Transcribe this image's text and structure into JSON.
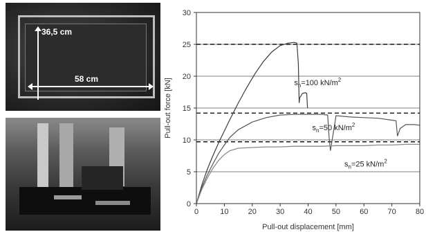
{
  "photos": {
    "top": {
      "height_label": "36,5 cm",
      "width_label": "58 cm"
    }
  },
  "chart_data": {
    "type": "line",
    "xlabel": "Pull-out displacement [mm]",
    "ylabel": "Pull-out force [kN]",
    "xlim": [
      0,
      80
    ],
    "ylim": [
      0,
      30
    ],
    "xticks": [
      0,
      10,
      20,
      30,
      40,
      50,
      60,
      70,
      80
    ],
    "yticks": [
      0,
      5,
      10,
      15,
      20,
      25,
      30
    ],
    "grid": "horizontal",
    "series": [
      {
        "label_main": "s",
        "label_sub": "n",
        "label_rest": "=100 kN/m",
        "label_sup": "2",
        "label_at": [
          35,
          18.6
        ],
        "color": "#3a3a3a",
        "x": [
          0,
          2,
          4,
          6,
          8,
          10,
          12,
          15,
          18,
          21,
          24,
          27,
          30,
          33,
          35,
          36,
          36.5,
          36.8,
          37,
          38,
          39,
          39.5,
          39.8
        ],
        "y": [
          0,
          3.0,
          5.5,
          7.6,
          9.6,
          11.4,
          13.2,
          15.8,
          18.2,
          20.4,
          22.3,
          23.8,
          24.8,
          25.2,
          25.3,
          25.2,
          22.0,
          15.8,
          16.6,
          17.3,
          17.4,
          17.3,
          15.0
        ]
      },
      {
        "label_main": "s",
        "label_sub": "n",
        "label_rest": "=50 kN/m",
        "label_sup": "2",
        "label_at": [
          41.5,
          11.5
        ],
        "color": "#555555",
        "x": [
          0,
          2,
          4,
          6,
          8,
          10,
          12,
          15,
          20,
          25,
          30,
          35,
          40,
          43,
          45,
          47,
          47.5,
          48,
          50,
          55,
          60,
          65,
          70,
          71.5,
          72,
          73,
          75,
          78,
          80
        ],
        "y": [
          0,
          2.6,
          4.6,
          6.3,
          7.9,
          9.2,
          10.4,
          11.6,
          12.8,
          13.5,
          13.9,
          14.0,
          14.0,
          14.0,
          14.0,
          13.9,
          10.5,
          8.3,
          13.8,
          13.6,
          13.5,
          13.4,
          13.1,
          13.0,
          10.6,
          11.8,
          12.4,
          12.4,
          12.3
        ]
      },
      {
        "label_main": "s",
        "label_sub": "n",
        "label_rest": "=25 kN/m",
        "label_sup": "2",
        "label_at": [
          53,
          5.8
        ],
        "color": "#8a8a8a",
        "x": [
          0,
          2,
          4,
          6,
          8,
          10,
          12,
          15,
          20,
          25,
          30,
          35,
          40,
          45,
          50,
          55,
          60,
          65,
          70,
          75,
          80
        ],
        "y": [
          0,
          2.3,
          4.1,
          5.6,
          6.8,
          7.7,
          8.3,
          8.7,
          8.8,
          8.9,
          8.9,
          9.0,
          9.0,
          9.0,
          9.1,
          9.1,
          9.1,
          9.2,
          9.2,
          9.3,
          9.3
        ]
      }
    ],
    "reference_lines": [
      {
        "y": 25.0,
        "style": "dashed"
      },
      {
        "y": 14.2,
        "style": "dashed"
      },
      {
        "y": 9.7,
        "style": "dashed"
      }
    ]
  }
}
